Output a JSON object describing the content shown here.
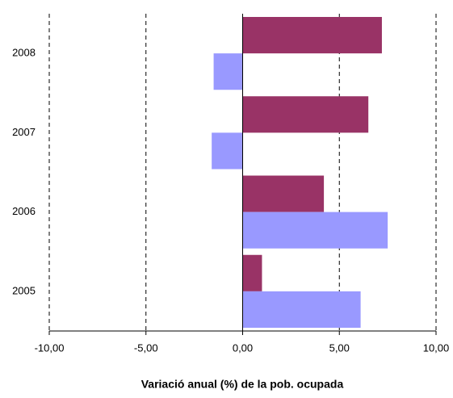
{
  "chart_data": {
    "type": "hbar",
    "x_label": "Variació anual (%) de la pob. ocupada",
    "categories": [
      "2008",
      "2007",
      "2006",
      "2005"
    ],
    "series": [
      {
        "color": "#993366",
        "values": [
          7.2,
          6.5,
          4.2,
          1.0
        ]
      },
      {
        "color": "#9999ff",
        "values": [
          -1.5,
          -1.6,
          7.5,
          6.1
        ]
      }
    ],
    "xlim": [
      -10,
      10
    ],
    "xticks": [
      {
        "value": -10,
        "label": "-10,00"
      },
      {
        "value": -5,
        "label": "-5,00"
      },
      {
        "value": 0,
        "label": "0,00"
      },
      {
        "value": 5,
        "label": "5,00"
      },
      {
        "value": 10,
        "label": "10,00"
      }
    ],
    "grid": true
  }
}
